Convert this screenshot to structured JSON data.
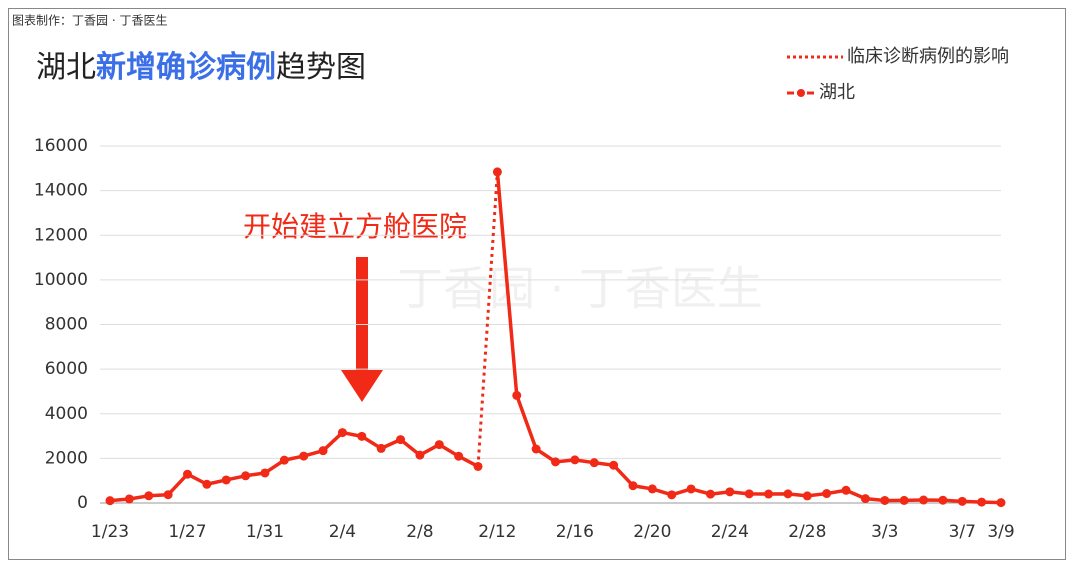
{
  "chart_data": {
    "type": "line",
    "source": "图表制作：丁香园 · 丁香医生",
    "title": [
      "湖北",
      "新增确诊病例",
      "趋势图"
    ],
    "watermark": "丁香园 · 丁香医生",
    "annotation": "开始建立方舱医院",
    "categories": [
      "1/23",
      null,
      null,
      null,
      "1/27",
      null,
      null,
      null,
      "1/31",
      null,
      null,
      null,
      "2/4",
      null,
      null,
      null,
      "2/8",
      null,
      null,
      null,
      "2/12",
      null,
      null,
      null,
      "2/16",
      null,
      null,
      null,
      "2/20",
      null,
      null,
      null,
      "2/24",
      null,
      null,
      null,
      "2/28",
      null,
      null,
      null,
      "3/3",
      null,
      null,
      null,
      "3/7",
      null,
      "3/9"
    ],
    "series": [
      {
        "name": "临床诊断病例的影响",
        "color": "#f02a17",
        "style": "dotted",
        "values": [
          null,
          null,
          null,
          null,
          null,
          null,
          null,
          null,
          null,
          null,
          null,
          null,
          null,
          null,
          null,
          null,
          null,
          null,
          null,
          1638,
          14840,
          null,
          null,
          null,
          null,
          null,
          null,
          null,
          null,
          null,
          null,
          null,
          null,
          null,
          null,
          null,
          null,
          null,
          null,
          null,
          null,
          null,
          null,
          null,
          null,
          null,
          null
        ]
      },
      {
        "name": "湖北",
        "color": "#f02a17",
        "style": "solid",
        "values": [
          105,
          180,
          323,
          371,
          1291,
          840,
          1032,
          1220,
          1347,
          1921,
          2103,
          2345,
          3156,
          2987,
          2447,
          2841,
          2147,
          2618,
          2097,
          1638,
          14840,
          4823,
          2420,
          1843,
          1933,
          1807,
          1693,
          775,
          631,
          366,
          630,
          398,
          499,
          411,
          401,
          409,
          318,
          423,
          570,
          196,
          114,
          115,
          134,
          126,
          74,
          41,
          17
        ]
      }
    ],
    "ylim": [
      0,
      16000
    ],
    "yticks": [
      0,
      2000,
      4000,
      6000,
      8000,
      10000,
      12000,
      14000,
      16000
    ],
    "grid": true
  }
}
